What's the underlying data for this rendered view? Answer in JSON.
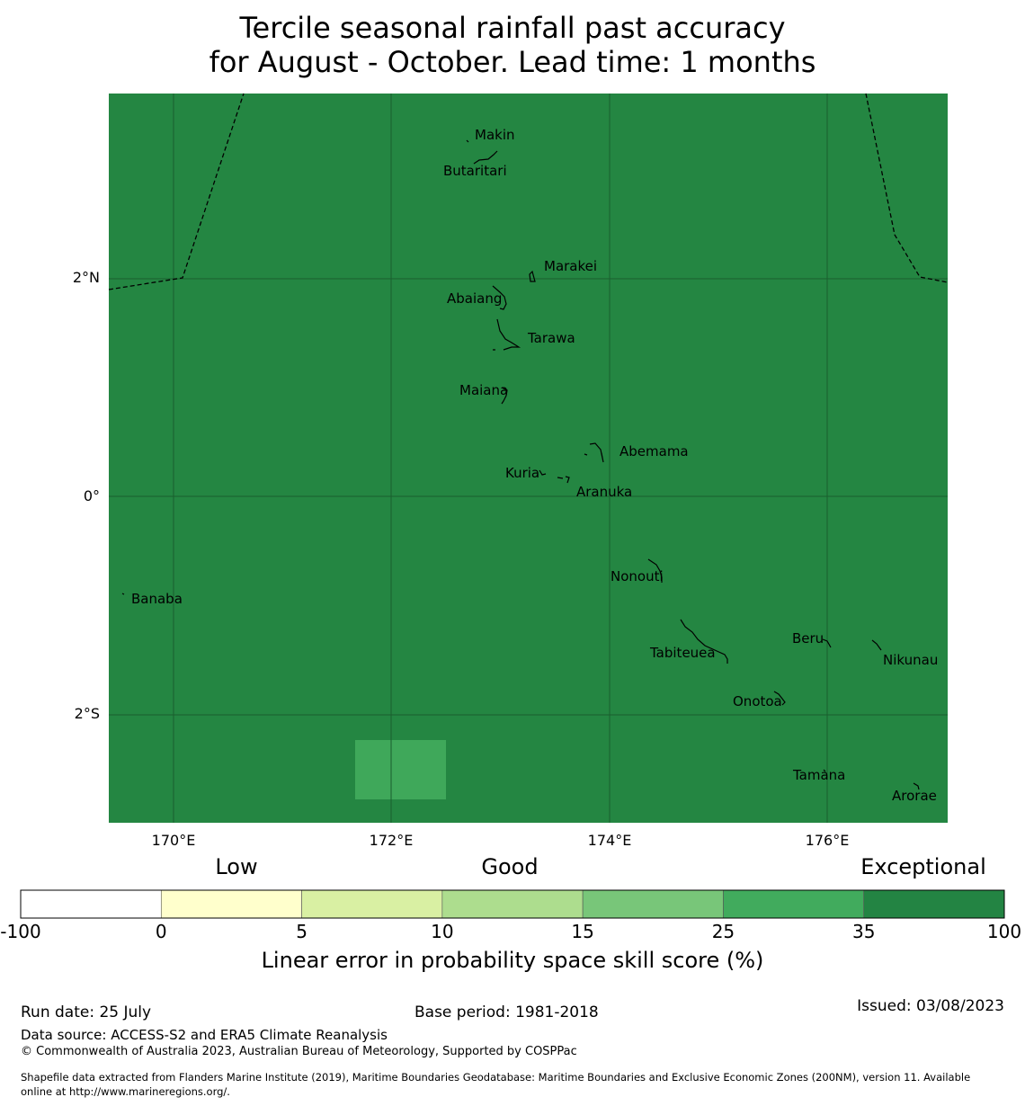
{
  "title": {
    "line1": "Tercile seasonal rainfall past accuracy",
    "line2": "for August - October. Lead time: 1 months"
  },
  "map": {
    "background_color": "#248642",
    "patch_color": "#3fa85a",
    "grid_color": "#1a5e2e",
    "lon_range": [
      169.4,
      177.1
    ],
    "lat_range": [
      -3.0,
      3.7
    ],
    "lat_labels": [
      "2°N",
      "0°",
      "2°S"
    ],
    "lat_values": [
      2,
      0,
      -2
    ],
    "lon_labels": [
      "170°E",
      "172°E",
      "174°E",
      "176°E"
    ],
    "lon_values": [
      170,
      172,
      174,
      176
    ],
    "islands": [
      {
        "name": "Makin",
        "lon": 173.0,
        "lat": 3.35
      },
      {
        "name": "Butaritari",
        "lon": 172.8,
        "lat": 3.1
      },
      {
        "name": "Marakei",
        "lon": 173.3,
        "lat": 2.0
      },
      {
        "name": "Abaiang",
        "lon": 172.95,
        "lat": 1.85
      },
      {
        "name": "Tarawa",
        "lon": 173.05,
        "lat": 1.4
      },
      {
        "name": "Maiana",
        "lon": 173.0,
        "lat": 0.95
      },
      {
        "name": "Abemama",
        "lon": 173.9,
        "lat": 0.4
      },
      {
        "name": "Kuria",
        "lon": 173.4,
        "lat": 0.22
      },
      {
        "name": "Aranuka",
        "lon": 173.6,
        "lat": 0.17
      },
      {
        "name": "Nonouti",
        "lon": 174.4,
        "lat": -0.65
      },
      {
        "name": "Banaba",
        "lon": 169.55,
        "lat": -0.87
      },
      {
        "name": "Beru",
        "lon": 176.0,
        "lat": -1.33
      },
      {
        "name": "Nikunau",
        "lon": 176.45,
        "lat": -1.35
      },
      {
        "name": "Tabiteuea",
        "lon": 174.9,
        "lat": -1.3
      },
      {
        "name": "Onotoa",
        "lon": 175.55,
        "lat": -1.8
      },
      {
        "name": "Tamana",
        "lon": 175.97,
        "lat": -2.5
      },
      {
        "name": "Arorae",
        "lon": 176.82,
        "lat": -2.63
      }
    ]
  },
  "colorbar": {
    "category_labels": [
      "Low",
      "Good",
      "Exceptional"
    ],
    "tick_labels": [
      "-100",
      "0",
      "5",
      "10",
      "15",
      "25",
      "35",
      "100"
    ],
    "colors": [
      "#ffffff",
      "#ffffcc",
      "#d9f0a3",
      "#addd8e",
      "#78c679",
      "#41ab5d",
      "#238443"
    ],
    "label": "Linear error in probability space skill score (%)"
  },
  "footer": {
    "run_date": "Run date: 25 July",
    "base_period": "Base period: 1981-2018",
    "issued": "Issued: 03/08/2023",
    "data_source": "Data source: ACCESS-S2 and ERA5 Climate Reanalysis",
    "copyright": "© Commonwealth of Australia 2023, Australian Bureau of Meteorology, Supported by COSPPac",
    "shapefile_line1": "Shapefile data extracted from Flanders Marine Institute (2019), Maritime Boundaries Geodatabase: Maritime Boundaries and Exclusive Economic Zones (200NM), version 11. Available",
    "shapefile_line2": "online at http://www.marineregions.org/."
  }
}
